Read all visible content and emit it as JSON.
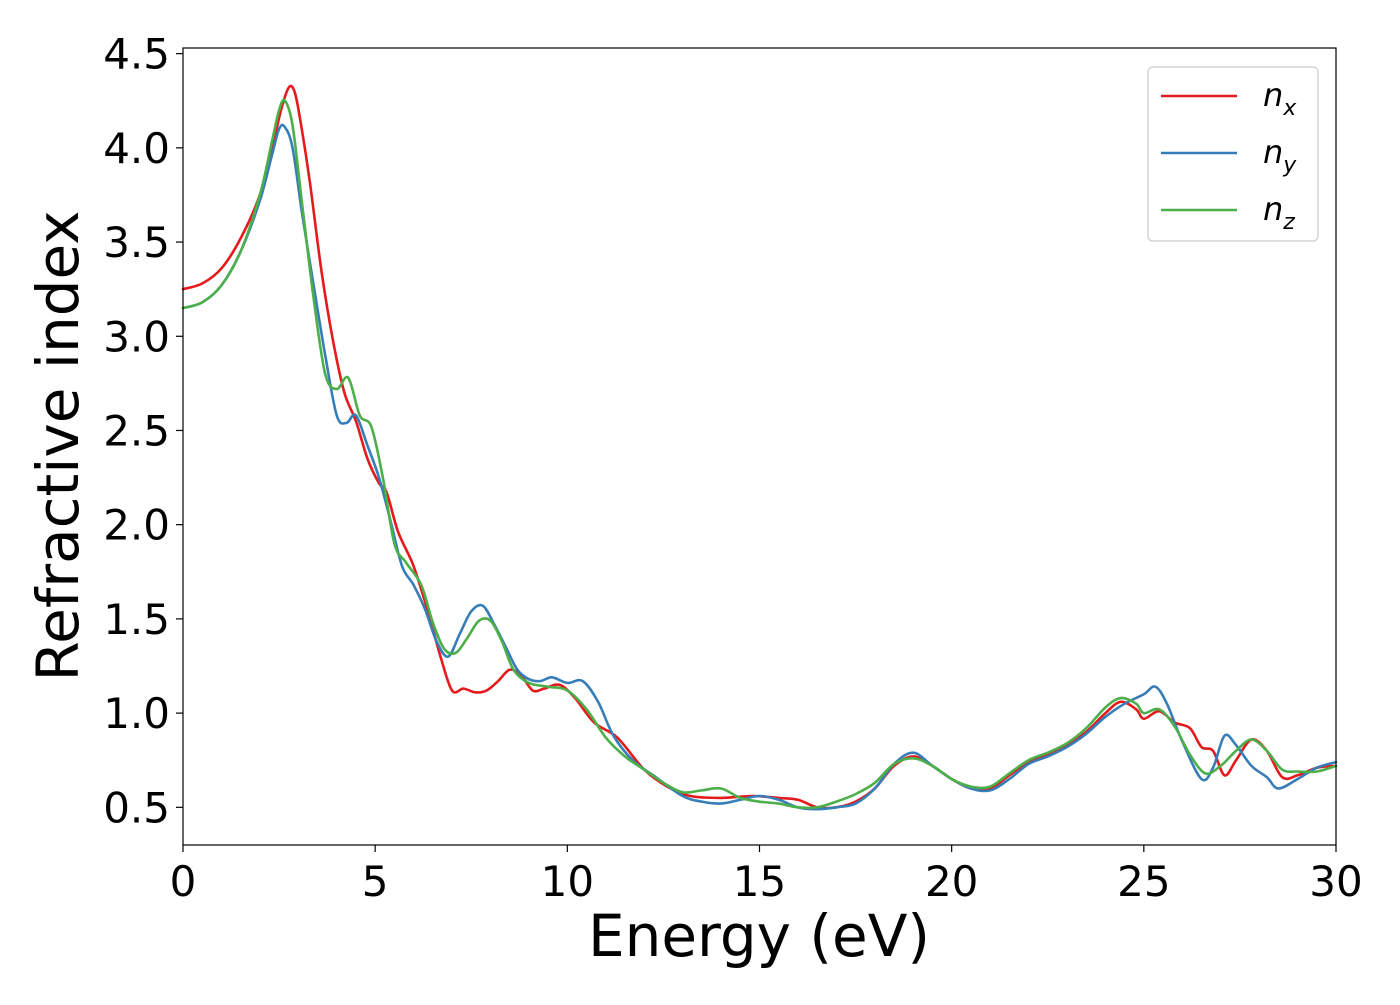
{
  "chart_data": {
    "type": "line",
    "title": "",
    "xlabel": "Energy (eV)",
    "ylabel": "Refractive index",
    "xlim": [
      0,
      30
    ],
    "ylim": [
      0.3,
      4.53
    ],
    "xticks": [
      0,
      5,
      10,
      15,
      20,
      25,
      30
    ],
    "xtick_labels": [
      "0",
      "5",
      "10",
      "15",
      "20",
      "25",
      "30"
    ],
    "yticks": [
      0.5,
      1.0,
      1.5,
      2.0,
      2.5,
      3.0,
      3.5,
      4.0,
      4.5
    ],
    "ytick_labels": [
      "0.5",
      "1.0",
      "1.5",
      "2.0",
      "2.5",
      "3.0",
      "3.5",
      "4.0",
      "4.5"
    ],
    "grid": false,
    "legend_position": "top-right",
    "series": [
      {
        "name": "n_x",
        "label_main": "n",
        "label_sub": "x",
        "color": "#e41a1c",
        "points": [
          [
            0,
            3.25
          ],
          [
            0.5,
            3.28
          ],
          [
            1,
            3.36
          ],
          [
            1.5,
            3.52
          ],
          [
            2,
            3.75
          ],
          [
            2.3,
            3.98
          ],
          [
            2.55,
            4.2
          ],
          [
            2.75,
            4.32
          ],
          [
            2.9,
            4.3
          ],
          [
            3.05,
            4.15
          ],
          [
            3.3,
            3.82
          ],
          [
            3.6,
            3.35
          ],
          [
            3.9,
            2.98
          ],
          [
            4.2,
            2.7
          ],
          [
            4.5,
            2.55
          ],
          [
            4.8,
            2.35
          ],
          [
            5.1,
            2.22
          ],
          [
            5.3,
            2.17
          ],
          [
            5.6,
            1.96
          ],
          [
            6,
            1.78
          ],
          [
            6.4,
            1.52
          ],
          [
            6.7,
            1.3
          ],
          [
            7,
            1.12
          ],
          [
            7.3,
            1.13
          ],
          [
            7.6,
            1.11
          ],
          [
            7.9,
            1.12
          ],
          [
            8.2,
            1.17
          ],
          [
            8.5,
            1.23
          ],
          [
            8.8,
            1.2
          ],
          [
            9.1,
            1.12
          ],
          [
            9.4,
            1.13
          ],
          [
            9.8,
            1.15
          ],
          [
            10.2,
            1.08
          ],
          [
            10.7,
            0.95
          ],
          [
            11.3,
            0.87
          ],
          [
            12,
            0.7
          ],
          [
            12.6,
            0.61
          ],
          [
            13.2,
            0.56
          ],
          [
            14,
            0.55
          ],
          [
            14.8,
            0.56
          ],
          [
            15.5,
            0.55
          ],
          [
            16,
            0.54
          ],
          [
            16.5,
            0.5
          ],
          [
            17,
            0.5
          ],
          [
            17.5,
            0.53
          ],
          [
            18,
            0.6
          ],
          [
            18.5,
            0.72
          ],
          [
            19,
            0.77
          ],
          [
            19.5,
            0.72
          ],
          [
            20,
            0.65
          ],
          [
            20.5,
            0.6
          ],
          [
            21,
            0.6
          ],
          [
            21.5,
            0.67
          ],
          [
            22,
            0.74
          ],
          [
            22.5,
            0.78
          ],
          [
            23,
            0.83
          ],
          [
            23.5,
            0.9
          ],
          [
            24,
            1
          ],
          [
            24.4,
            1.06
          ],
          [
            24.8,
            1.02
          ],
          [
            25,
            0.97
          ],
          [
            25.4,
            1.01
          ],
          [
            25.8,
            0.95
          ],
          [
            26.2,
            0.92
          ],
          [
            26.5,
            0.82
          ],
          [
            26.8,
            0.8
          ],
          [
            27.1,
            0.67
          ],
          [
            27.4,
            0.75
          ],
          [
            27.8,
            0.86
          ],
          [
            28.2,
            0.8
          ],
          [
            28.6,
            0.66
          ],
          [
            29,
            0.67
          ],
          [
            29.5,
            0.71
          ],
          [
            30,
            0.72
          ]
        ]
      },
      {
        "name": "n_y",
        "label_main": "n",
        "label_sub": "y",
        "color": "#377eb8",
        "points": [
          [
            0,
            3.15
          ],
          [
            0.5,
            3.18
          ],
          [
            1,
            3.27
          ],
          [
            1.5,
            3.45
          ],
          [
            2,
            3.72
          ],
          [
            2.3,
            3.95
          ],
          [
            2.5,
            4.1
          ],
          [
            2.65,
            4.11
          ],
          [
            2.85,
            4.0
          ],
          [
            3.1,
            3.65
          ],
          [
            3.4,
            3.27
          ],
          [
            3.7,
            2.9
          ],
          [
            4,
            2.58
          ],
          [
            4.25,
            2.54
          ],
          [
            4.5,
            2.58
          ],
          [
            4.8,
            2.42
          ],
          [
            5.1,
            2.25
          ],
          [
            5.4,
            2.02
          ],
          [
            5.7,
            1.78
          ],
          [
            6,
            1.68
          ],
          [
            6.3,
            1.55
          ],
          [
            6.6,
            1.38
          ],
          [
            6.9,
            1.3
          ],
          [
            7.2,
            1.42
          ],
          [
            7.5,
            1.54
          ],
          [
            7.8,
            1.57
          ],
          [
            8.1,
            1.47
          ],
          [
            8.4,
            1.35
          ],
          [
            8.7,
            1.23
          ],
          [
            9,
            1.18
          ],
          [
            9.3,
            1.17
          ],
          [
            9.6,
            1.19
          ],
          [
            10,
            1.16
          ],
          [
            10.4,
            1.17
          ],
          [
            10.8,
            1.06
          ],
          [
            11.2,
            0.88
          ],
          [
            11.7,
            0.75
          ],
          [
            12.3,
            0.66
          ],
          [
            13,
            0.56
          ],
          [
            13.5,
            0.53
          ],
          [
            14,
            0.52
          ],
          [
            14.5,
            0.54
          ],
          [
            15,
            0.56
          ],
          [
            15.5,
            0.54
          ],
          [
            16,
            0.5
          ],
          [
            16.5,
            0.49
          ],
          [
            17,
            0.5
          ],
          [
            17.5,
            0.52
          ],
          [
            18,
            0.6
          ],
          [
            18.5,
            0.73
          ],
          [
            19,
            0.79
          ],
          [
            19.5,
            0.72
          ],
          [
            20,
            0.65
          ],
          [
            20.5,
            0.6
          ],
          [
            21,
            0.59
          ],
          [
            21.5,
            0.65
          ],
          [
            22,
            0.73
          ],
          [
            22.5,
            0.77
          ],
          [
            23,
            0.82
          ],
          [
            23.5,
            0.89
          ],
          [
            24,
            0.98
          ],
          [
            24.5,
            1.05
          ],
          [
            25,
            1.1
          ],
          [
            25.3,
            1.14
          ],
          [
            25.6,
            1.05
          ],
          [
            26,
            0.85
          ],
          [
            26.5,
            0.65
          ],
          [
            26.8,
            0.71
          ],
          [
            27.1,
            0.88
          ],
          [
            27.4,
            0.83
          ],
          [
            27.8,
            0.72
          ],
          [
            28.2,
            0.66
          ],
          [
            28.5,
            0.6
          ],
          [
            29,
            0.65
          ],
          [
            29.5,
            0.71
          ],
          [
            30,
            0.74
          ]
        ]
      },
      {
        "name": "n_z",
        "label_main": "n",
        "label_sub": "z",
        "color": "#4daf4a",
        "points": [
          [
            0,
            3.15
          ],
          [
            0.5,
            3.18
          ],
          [
            1,
            3.27
          ],
          [
            1.5,
            3.45
          ],
          [
            2,
            3.75
          ],
          [
            2.3,
            4.02
          ],
          [
            2.5,
            4.2
          ],
          [
            2.65,
            4.25
          ],
          [
            2.85,
            4.12
          ],
          [
            3.1,
            3.7
          ],
          [
            3.4,
            3.2
          ],
          [
            3.7,
            2.8
          ],
          [
            4,
            2.72
          ],
          [
            4.3,
            2.78
          ],
          [
            4.6,
            2.58
          ],
          [
            4.9,
            2.52
          ],
          [
            5.2,
            2.25
          ],
          [
            5.5,
            1.9
          ],
          [
            5.8,
            1.8
          ],
          [
            6.2,
            1.68
          ],
          [
            6.5,
            1.48
          ],
          [
            6.8,
            1.34
          ],
          [
            7.1,
            1.32
          ],
          [
            7.4,
            1.4
          ],
          [
            7.7,
            1.49
          ],
          [
            8,
            1.49
          ],
          [
            8.3,
            1.38
          ],
          [
            8.6,
            1.23
          ],
          [
            9,
            1.16
          ],
          [
            9.5,
            1.14
          ],
          [
            10,
            1.12
          ],
          [
            10.5,
            1.02
          ],
          [
            11,
            0.87
          ],
          [
            11.5,
            0.77
          ],
          [
            12,
            0.7
          ],
          [
            12.5,
            0.63
          ],
          [
            13,
            0.58
          ],
          [
            13.5,
            0.59
          ],
          [
            14,
            0.6
          ],
          [
            14.5,
            0.55
          ],
          [
            15,
            0.53
          ],
          [
            15.5,
            0.52
          ],
          [
            16,
            0.5
          ],
          [
            16.5,
            0.5
          ],
          [
            17,
            0.53
          ],
          [
            17.5,
            0.57
          ],
          [
            18,
            0.63
          ],
          [
            18.5,
            0.73
          ],
          [
            19,
            0.76
          ],
          [
            19.5,
            0.72
          ],
          [
            20,
            0.65
          ],
          [
            20.5,
            0.61
          ],
          [
            21,
            0.61
          ],
          [
            21.5,
            0.68
          ],
          [
            22,
            0.75
          ],
          [
            22.5,
            0.79
          ],
          [
            23,
            0.84
          ],
          [
            23.5,
            0.92
          ],
          [
            24,
            1.03
          ],
          [
            24.4,
            1.08
          ],
          [
            24.8,
            1.05
          ],
          [
            25,
            1.0
          ],
          [
            25.4,
            1.02
          ],
          [
            25.8,
            0.93
          ],
          [
            26.2,
            0.78
          ],
          [
            26.6,
            0.68
          ],
          [
            27,
            0.72
          ],
          [
            27.4,
            0.8
          ],
          [
            27.8,
            0.86
          ],
          [
            28.2,
            0.8
          ],
          [
            28.6,
            0.7
          ],
          [
            29,
            0.69
          ],
          [
            29.5,
            0.69
          ],
          [
            30,
            0.72
          ]
        ]
      }
    ]
  }
}
